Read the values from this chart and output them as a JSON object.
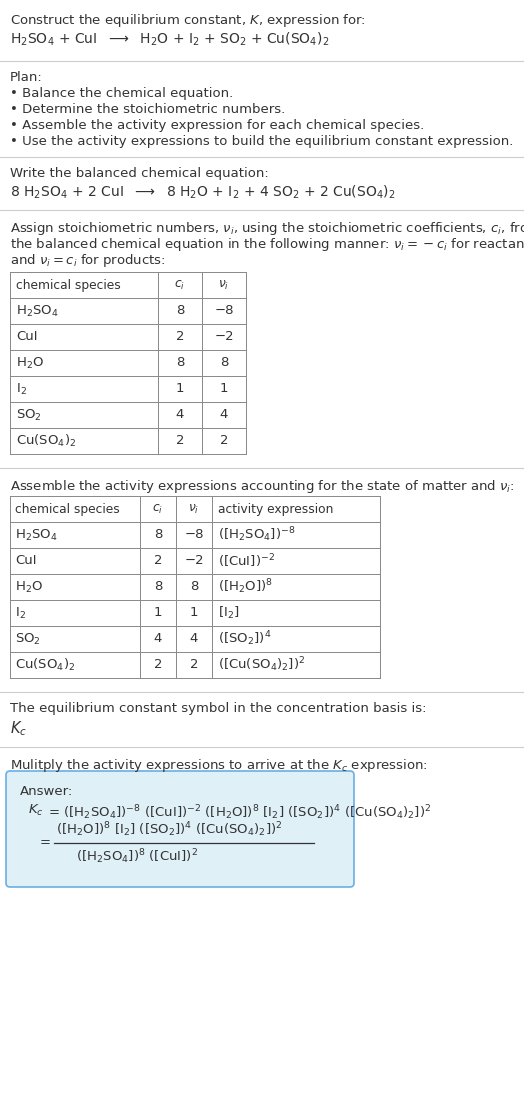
{
  "bg_color": "#ffffff",
  "text_color": "#333333",
  "title_line1": "Construct the equilibrium constant, $K$, expression for:",
  "title_line2": "$\\mathregular{H_2SO_4}$ + CuI  $\\longrightarrow$  $\\mathregular{H_2O}$ + $\\mathregular{I_2}$ + $\\mathregular{SO_2}$ + $\\mathregular{Cu(SO_4)_2}$",
  "plan_header": "Plan:",
  "plan_items": [
    "• Balance the chemical equation.",
    "• Determine the stoichiometric numbers.",
    "• Assemble the activity expression for each chemical species.",
    "• Use the activity expressions to build the equilibrium constant expression."
  ],
  "balanced_header": "Write the balanced chemical equation:",
  "balanced_eq": "8 $\\mathregular{H_2SO_4}$ + 2 CuI  $\\longrightarrow$  8 $\\mathregular{H_2O}$ + $\\mathregular{I_2}$ + 4 $\\mathregular{SO_2}$ + 2 $\\mathregular{Cu(SO_4)_2}$",
  "stoich_header_lines": [
    "Assign stoichiometric numbers, $\\nu_i$, using the stoichiometric coefficients, $c_i$, from",
    "the balanced chemical equation in the following manner: $\\nu_i = -c_i$ for reactants",
    "and $\\nu_i = c_i$ for products:"
  ],
  "table1_col0": "chemical species",
  "table1_col1": "$c_i$",
  "table1_col2": "$\\nu_i$",
  "table1_rows": [
    [
      "$\\mathregular{H_2SO_4}$",
      "8",
      "−8"
    ],
    [
      "CuI",
      "2",
      "−2"
    ],
    [
      "$\\mathregular{H_2O}$",
      "8",
      "8"
    ],
    [
      "$\\mathregular{I_2}$",
      "1",
      "1"
    ],
    [
      "$\\mathregular{SO_2}$",
      "4",
      "4"
    ],
    [
      "$\\mathregular{Cu(SO_4)_2}$",
      "2",
      "2"
    ]
  ],
  "activity_header": "Assemble the activity expressions accounting for the state of matter and $\\nu_i$:",
  "table2_col0": "chemical species",
  "table2_col1": "$c_i$",
  "table2_col2": "$\\nu_i$",
  "table2_col3": "activity expression",
  "table2_rows": [
    [
      "$\\mathregular{H_2SO_4}$",
      "8",
      "−8",
      "($\\mathregular{[H_2SO_4]}$)$^{-8}$"
    ],
    [
      "CuI",
      "2",
      "−2",
      "($\\mathregular{[CuI]}$)$^{-2}$"
    ],
    [
      "$\\mathregular{H_2O}$",
      "8",
      "8",
      "($\\mathregular{[H_2O]}$)$^8$"
    ],
    [
      "$\\mathregular{I_2}$",
      "1",
      "1",
      "[$\\mathregular{I_2}$]"
    ],
    [
      "$\\mathregular{SO_2}$",
      "4",
      "4",
      "($\\mathregular{[SO_2]}$)$^4$"
    ],
    [
      "$\\mathregular{Cu(SO_4)_2}$",
      "2",
      "2",
      "($\\mathregular{[Cu(SO_4)_2]}$)$^2$"
    ]
  ],
  "kc_text": "The equilibrium constant symbol in the concentration basis is:",
  "kc_symbol": "$K_c$",
  "multiply_text": "Mulitply the activity expressions to arrive at the $K_c$ expression:",
  "answer_label": "Answer:",
  "answer_line1a": "$K_c$",
  "answer_line1b": " = ($\\mathregular{[H_2SO_4]}$)$^{-8}$ ($\\mathregular{[CuI]}$)$^{-2}$ ($\\mathregular{[H_2O]}$)$^8$ [$\\mathregular{I_2}$] ($\\mathregular{[SO_2]}$)$^4$ ($\\mathregular{[Cu(SO_4)_2]}$)$^2$",
  "answer_eq_sign": "    =",
  "answer_num": "($\\mathregular{[H_2O]}$)$^8$ [$\\mathregular{I_2}$] ($\\mathregular{[SO_2]}$)$^4$ ($\\mathregular{[Cu(SO_4)_2]}$)$^2$",
  "answer_den": "($\\mathregular{[H_2SO_4]}$)$^8$ ($\\mathregular{[CuI]}$)$^2$",
  "answer_box_color": "#dff0f7",
  "answer_border_color": "#6aafe6",
  "font_size": 9.5,
  "font_size_small": 8.8
}
